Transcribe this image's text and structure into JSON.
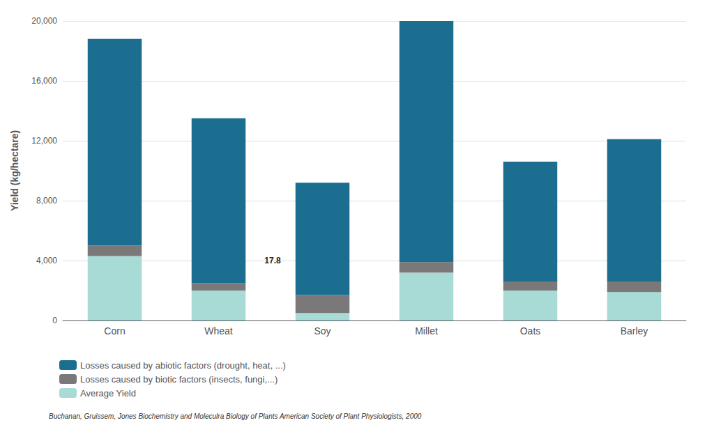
{
  "chart_data": {
    "type": "bar",
    "stacked": true,
    "ylabel": "Yield (kg/hectare)",
    "categories": [
      "Corn",
      "Wheat",
      "Soy",
      "Millet",
      "Oats",
      "Barley"
    ],
    "series": [
      {
        "name": "Average Yield",
        "color": "#a8dbd6",
        "values": [
          4300,
          2000,
          500,
          3200,
          2000,
          1900
        ]
      },
      {
        "name": "Losses caused by biotic factors (insects, fungi,...)",
        "color": "#7a7878",
        "values": [
          700,
          500,
          1200,
          700,
          600,
          700
        ]
      },
      {
        "name": "Losses caused by abiotic factors (drought, heat, ...)",
        "color": "#1b6e8f",
        "values": [
          13800,
          11000,
          7500,
          16100,
          8000,
          9500
        ]
      }
    ],
    "ylim": [
      0,
      20000
    ],
    "yticks": [
      0,
      {
        "value": 4000,
        "label": "4,000"
      },
      {
        "value": 8000,
        "label": "8,000"
      },
      {
        "value": 12000,
        "label": "12,000"
      },
      {
        "value": 16000,
        "label": "16,000"
      },
      {
        "value": 20000,
        "label": "20,000"
      }
    ],
    "grid": true,
    "legend": "lower left",
    "annotations": [
      {
        "text": "17.8",
        "x": 1.52,
        "y": 4000
      }
    ],
    "source": "Buchanan, Gruissem, Jones Biochemistry and Moleculra Biology of Plants American Society of Plant Physiologists, 2000"
  }
}
